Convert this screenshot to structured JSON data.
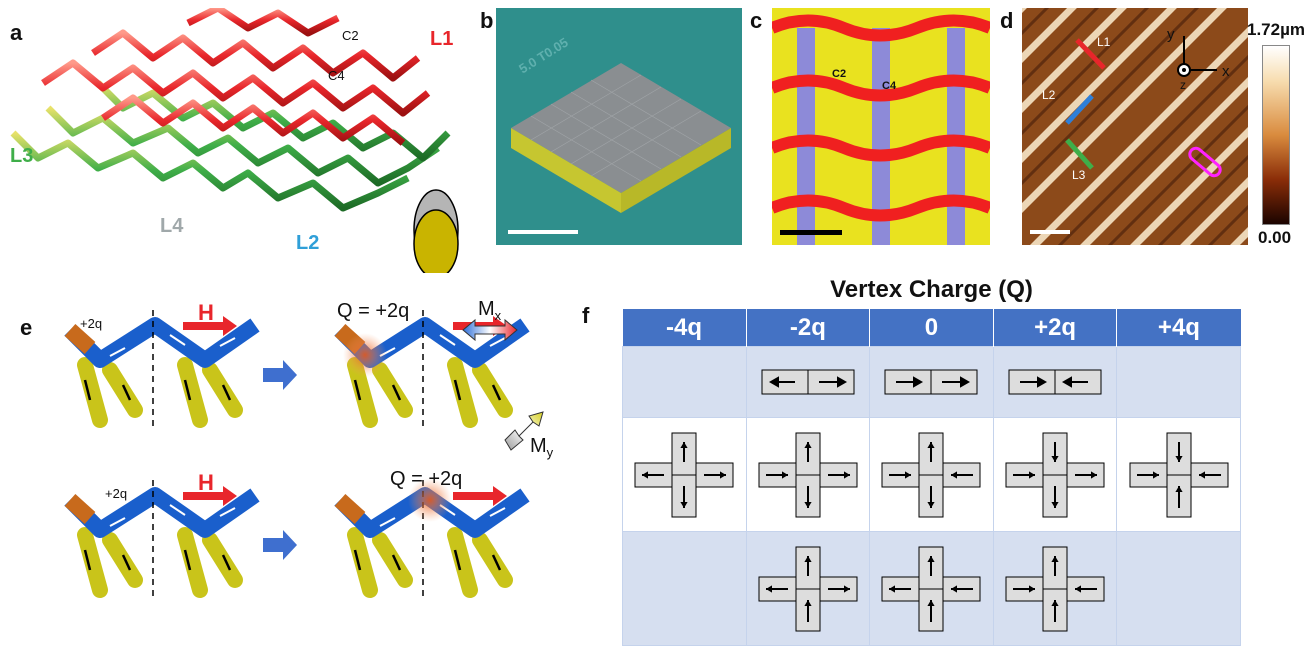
{
  "panels": {
    "a": {
      "letter": "a",
      "labels": {
        "L1": "L1",
        "L2": "L2",
        "L3": "L3",
        "L4": "L4",
        "C2": "C2",
        "C4": "C4"
      }
    },
    "b": {
      "letter": "b",
      "engraving": "5.0 T0.05"
    },
    "c": {
      "letter": "c",
      "labels": {
        "C2": "C2",
        "C4": "C4"
      }
    },
    "d": {
      "letter": "d",
      "labels": {
        "L1": "L1",
        "L2": "L2",
        "L3": "L3",
        "y": "y",
        "x": "x",
        "z": "z"
      },
      "colorbar": {
        "max": "1.72µm",
        "min": "0.00"
      }
    },
    "e": {
      "letter": "e",
      "field": "H",
      "charge_small": "+2q",
      "charge_q": "Q = +2q",
      "mx": "M",
      "mx_sub": "x",
      "my": "M",
      "my_sub": "y"
    },
    "f": {
      "letter": "f",
      "title": "Vertex Charge (Q)",
      "columns": [
        "-4q",
        "-2q",
        "0",
        "+2q",
        "+4q"
      ]
    }
  },
  "colors": {
    "red": "#e8262b",
    "blue": "#2f7fd8",
    "green": "#3fae49",
    "gray": "#a9b8bd",
    "yellow": "#c9c41a",
    "orange": "#c86a1c",
    "header": "#4472c4"
  }
}
